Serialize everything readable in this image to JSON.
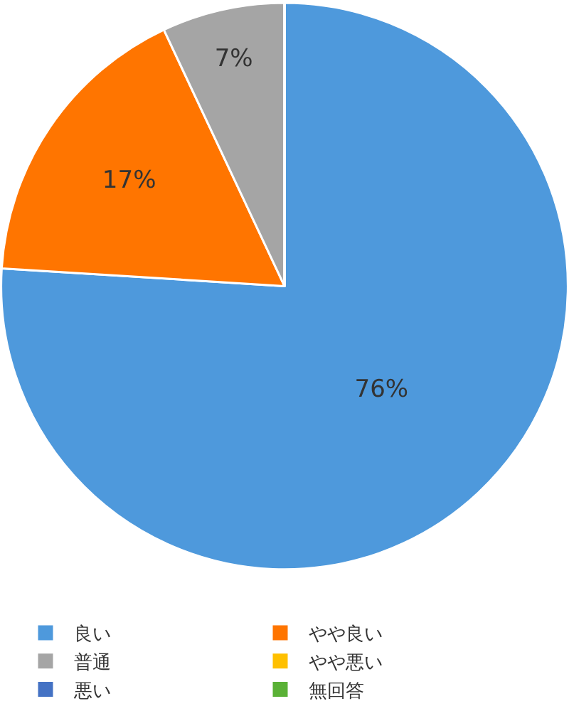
{
  "chart_data": {
    "type": "pie",
    "categories": [
      "良い",
      "やや良い",
      "普通",
      "やや悪い",
      "悪い",
      "無回答"
    ],
    "values": [
      76,
      17,
      7,
      0,
      0,
      0
    ],
    "colors": [
      "#4e99dc",
      "#ff7500",
      "#a5a5a5",
      "#ffc000",
      "#4472c4",
      "#5ab136"
    ],
    "value_labels": [
      "76%",
      "17%",
      "7%",
      null,
      null,
      null
    ],
    "legend": "bottom"
  }
}
